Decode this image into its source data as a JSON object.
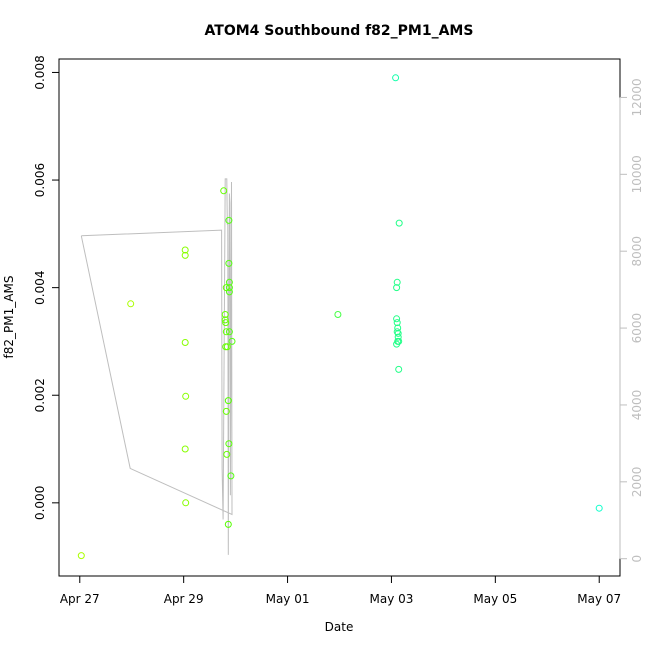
{
  "chart_data": {
    "type": "scatter",
    "title": "ATOM4 Southbound f82_PM1_AMS",
    "xlabel": "Date",
    "ylabel": "f82_PM1_AMS",
    "x_ticks": [
      {
        "label": "Apr 27",
        "day": 27.0
      },
      {
        "label": "Apr 29",
        "day": 29.0
      },
      {
        "label": "May 01",
        "day": 31.0
      },
      {
        "label": "May 03",
        "day": 33.0
      },
      {
        "label": "May 05",
        "day": 35.0
      },
      {
        "label": "May 07",
        "day": 37.0
      }
    ],
    "xlim_days": [
      26.6,
      37.4
    ],
    "ylim": [
      -0.00136,
      0.00825
    ],
    "y_ticks": [
      {
        "label": "0.000",
        "value": 0.0
      },
      {
        "label": "0.002",
        "value": 0.002
      },
      {
        "label": "0.004",
        "value": 0.004
      },
      {
        "label": "0.006",
        "value": 0.006
      },
      {
        "label": "0.008",
        "value": 0.008
      }
    ],
    "y2lim": [
      -450,
      13000
    ],
    "y2_ticks": [
      {
        "label": "0",
        "value": 0
      },
      {
        "label": "2000",
        "value": 2000
      },
      {
        "label": "4000",
        "value": 4000
      },
      {
        "label": "6000",
        "value": 6000
      },
      {
        "label": "8000",
        "value": 8000
      },
      {
        "label": "10000",
        "value": 10000
      },
      {
        "label": "12000",
        "value": 12000
      }
    ],
    "grid": false,
    "colors": {
      "secondary_line": "#bebebe",
      "axis": "#000000",
      "right_axis": "#bebebe"
    },
    "points": [
      {
        "day": 27.03,
        "y": -0.00098,
        "color": "#aaff00"
      },
      {
        "day": 27.98,
        "y": 0.0037,
        "color": "#aaff00"
      },
      {
        "day": 29.03,
        "y": 0.0047,
        "color": "#88ff00"
      },
      {
        "day": 29.03,
        "y": 0.0046,
        "color": "#88ff00"
      },
      {
        "day": 29.03,
        "y": 0.00298,
        "color": "#88ff00"
      },
      {
        "day": 29.04,
        "y": 0.00198,
        "color": "#88ff00"
      },
      {
        "day": 29.03,
        "y": 0.001,
        "color": "#88ff00"
      },
      {
        "day": 29.04,
        "y": 0.0,
        "color": "#88ff00"
      },
      {
        "day": 29.77,
        "y": 0.0058,
        "color": "#66ff00"
      },
      {
        "day": 29.8,
        "y": 0.0035,
        "color": "#66ff00"
      },
      {
        "day": 29.8,
        "y": 0.0034,
        "color": "#66ff00"
      },
      {
        "day": 29.81,
        "y": 0.00335,
        "color": "#66ff00"
      },
      {
        "day": 29.82,
        "y": 0.004,
        "color": "#66ff00"
      },
      {
        "day": 29.82,
        "y": 0.00318,
        "color": "#66ff00"
      },
      {
        "day": 29.81,
        "y": 0.0029,
        "color": "#66ff00"
      },
      {
        "day": 29.84,
        "y": 0.0029,
        "color": "#66ff00"
      },
      {
        "day": 29.82,
        "y": 0.0017,
        "color": "#66ff00"
      },
      {
        "day": 29.83,
        "y": 0.0009,
        "color": "#66ff00"
      },
      {
        "day": 29.86,
        "y": 0.0019,
        "color": "#55ff00"
      },
      {
        "day": 29.87,
        "y": 0.0011,
        "color": "#55ff00"
      },
      {
        "day": 29.86,
        "y": -0.0004,
        "color": "#55ff00"
      },
      {
        "day": 29.87,
        "y": 0.00525,
        "color": "#55ff11"
      },
      {
        "day": 29.87,
        "y": 0.00445,
        "color": "#55ff11"
      },
      {
        "day": 29.88,
        "y": 0.0041,
        "color": "#55ff11"
      },
      {
        "day": 29.88,
        "y": 0.004,
        "color": "#55ff11"
      },
      {
        "day": 29.88,
        "y": 0.00392,
        "color": "#55ff11"
      },
      {
        "day": 29.88,
        "y": 0.00318,
        "color": "#55ff11"
      },
      {
        "day": 29.93,
        "y": 0.003,
        "color": "#55ff11"
      },
      {
        "day": 29.91,
        "y": 0.0005,
        "color": "#55ff11"
      },
      {
        "day": 31.97,
        "y": 0.0035,
        "color": "#44ff44"
      },
      {
        "day": 33.08,
        "y": 0.0079,
        "color": "#11ffaa"
      },
      {
        "day": 33.15,
        "y": 0.0052,
        "color": "#22ff88"
      },
      {
        "day": 33.11,
        "y": 0.0041,
        "color": "#22ff88"
      },
      {
        "day": 33.1,
        "y": 0.004,
        "color": "#22ff88"
      },
      {
        "day": 33.1,
        "y": 0.00342,
        "color": "#22ff88"
      },
      {
        "day": 33.11,
        "y": 0.00335,
        "color": "#22ff88"
      },
      {
        "day": 33.12,
        "y": 0.00325,
        "color": "#22ff88"
      },
      {
        "day": 33.11,
        "y": 0.00318,
        "color": "#22ff88"
      },
      {
        "day": 33.13,
        "y": 0.00315,
        "color": "#22ff88"
      },
      {
        "day": 33.13,
        "y": 0.00308,
        "color": "#22ff88"
      },
      {
        "day": 33.12,
        "y": 0.003,
        "color": "#22ff88"
      },
      {
        "day": 33.1,
        "y": 0.00295,
        "color": "#22ff88"
      },
      {
        "day": 33.14,
        "y": 0.003,
        "color": "#22ff88"
      },
      {
        "day": 33.14,
        "y": 0.00248,
        "color": "#22ff88"
      },
      {
        "day": 37.0,
        "y": -0.0001,
        "color": "#11ffcc"
      }
    ],
    "secondary_series": {
      "axis": "right",
      "points": [
        {
          "day": 27.03,
          "v": 8400
        },
        {
          "day": 29.73,
          "v": 8550
        },
        {
          "day": 29.74,
          "v": 2350
        },
        {
          "day": 29.75,
          "v": 1680
        },
        {
          "day": 29.76,
          "v": 1020
        },
        {
          "day": 29.76,
          "v": 1020
        },
        {
          "day": 29.8,
          "v": 9880
        },
        {
          "day": 29.83,
          "v": 9880
        },
        {
          "day": 29.84,
          "v": 8700
        },
        {
          "day": 29.85,
          "v": 8700
        },
        {
          "day": 29.86,
          "v": 100
        },
        {
          "day": 29.87,
          "v": 6400
        },
        {
          "day": 29.88,
          "v": 9500
        },
        {
          "day": 29.89,
          "v": 9250
        },
        {
          "day": 29.9,
          "v": 1650
        },
        {
          "day": 29.92,
          "v": 9800
        },
        {
          "day": 29.93,
          "v": 1150
        },
        {
          "day": 27.97,
          "v": 2350
        },
        {
          "day": 27.03,
          "v": 8400
        }
      ]
    }
  }
}
